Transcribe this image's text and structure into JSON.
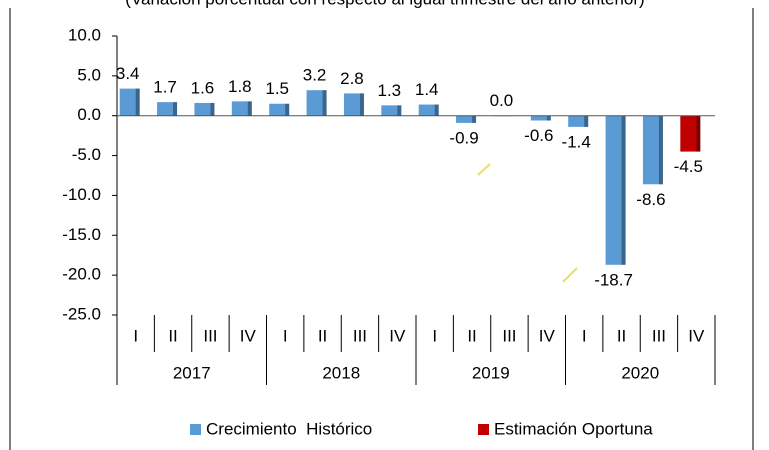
{
  "chart_data": {
    "type": "bar",
    "subtitle": "(Variación porcentual con respecto al igual trimestre del año anterior)",
    "categories": [
      "I",
      "II",
      "III",
      "IV",
      "I",
      "II",
      "III",
      "IV",
      "I",
      "II",
      "III",
      "IV",
      "I",
      "II",
      "III",
      "IV"
    ],
    "year_groups": [
      "2017",
      "2018",
      "2019",
      "2020"
    ],
    "series": [
      {
        "name": "Crecimiento  Histórico",
        "color": "#5b9bd5",
        "values": [
          3.4,
          1.7,
          1.6,
          1.8,
          1.5,
          3.2,
          2.8,
          1.3,
          1.4,
          -0.9,
          0.0,
          -0.6,
          -1.4,
          -18.7,
          -8.6,
          null
        ],
        "value_labels": [
          "3.4",
          "1.7",
          "1.6",
          "1.8",
          "1.5",
          "3.2",
          "2.8",
          "1.3",
          "1.4",
          "-0.9",
          "0.0",
          "-0.6",
          "-1.4",
          "-18.7",
          "-8.6",
          null
        ]
      },
      {
        "name": "Estimación Oportuna",
        "color": "#c00000",
        "values": [
          null,
          null,
          null,
          null,
          null,
          null,
          null,
          null,
          null,
          null,
          null,
          null,
          null,
          null,
          null,
          -4.5
        ],
        "value_labels": [
          null,
          null,
          null,
          null,
          null,
          null,
          null,
          null,
          null,
          null,
          null,
          null,
          null,
          null,
          null,
          "-4.5"
        ]
      }
    ],
    "ylim": [
      -25,
      10
    ],
    "yticks": [
      {
        "value": 10,
        "label": "10.0"
      },
      {
        "value": 5,
        "label": "5.0"
      },
      {
        "value": 0,
        "label": "0.0"
      },
      {
        "value": -5,
        "label": "-5.0"
      },
      {
        "value": -10,
        "label": "-10.0"
      },
      {
        "value": -15,
        "label": "-15.0"
      },
      {
        "value": -20,
        "label": "-20.0"
      },
      {
        "value": -25,
        "label": "-25.0"
      }
    ]
  }
}
